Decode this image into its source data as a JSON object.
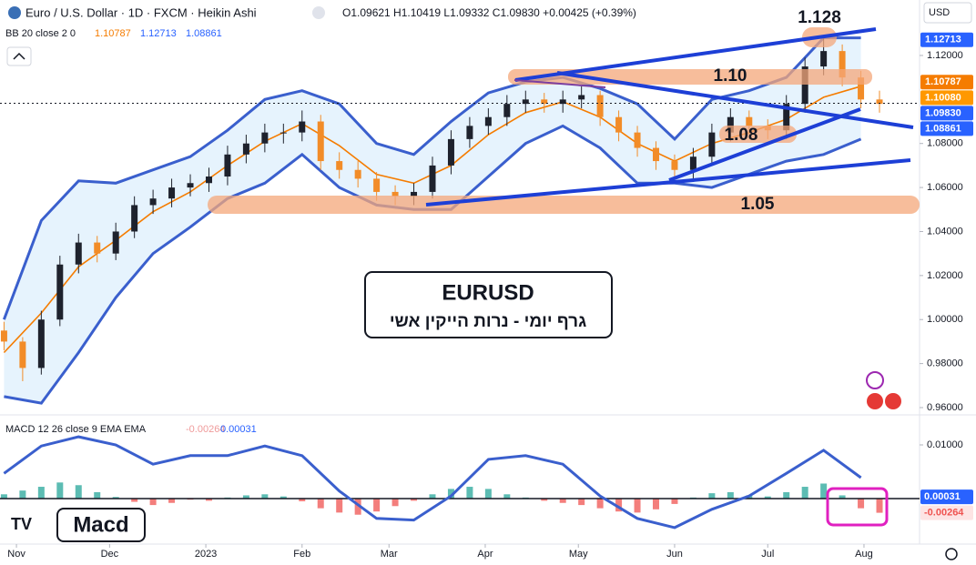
{
  "chart_data": [
    {
      "type": "candlestick",
      "title": "Euro / U.S. Dollar · 1D · FXCM · Heikin Ashi",
      "ohlc_text": "O1.09621 H1.10419 L1.09332 C1.09830 +0.00425 (+0.39%)",
      "indicator": "BB 20 close 2 0",
      "currency": "USD",
      "x": [
        -4,
        2,
        8,
        14,
        20,
        26,
        32,
        38,
        44,
        50,
        56,
        62,
        68,
        74,
        80,
        86,
        92,
        98,
        104,
        110,
        116,
        122,
        128,
        134,
        140,
        146,
        152,
        158,
        164,
        170,
        176,
        182,
        188,
        194,
        200,
        206,
        212,
        218,
        224,
        230,
        236,
        242,
        248,
        254,
        260,
        266,
        272,
        278
      ],
      "ohlc": [
        [
          0.995,
          0.999,
          0.986,
          0.99
        ],
        [
          0.99,
          0.992,
          0.972,
          0.978
        ],
        [
          0.978,
          1.004,
          0.975,
          1.0
        ],
        [
          1.0,
          1.029,
          0.997,
          1.025
        ],
        [
          1.025,
          1.039,
          1.021,
          1.035
        ],
        [
          1.035,
          1.038,
          1.026,
          1.03
        ],
        [
          1.03,
          1.044,
          1.027,
          1.04
        ],
        [
          1.04,
          1.056,
          1.037,
          1.052
        ],
        [
          1.052,
          1.059,
          1.048,
          1.055
        ],
        [
          1.055,
          1.064,
          1.051,
          1.06
        ],
        [
          1.06,
          1.066,
          1.056,
          1.062
        ],
        [
          1.062,
          1.069,
          1.058,
          1.065
        ],
        [
          1.065,
          1.079,
          1.061,
          1.075
        ],
        [
          1.075,
          1.084,
          1.071,
          1.08
        ],
        [
          1.08,
          1.089,
          1.076,
          1.085
        ],
        [
          1.085,
          1.089,
          1.08,
          1.085
        ],
        [
          1.085,
          1.095,
          1.081,
          1.09
        ],
        [
          1.09,
          1.093,
          1.068,
          1.072
        ],
        [
          1.072,
          1.076,
          1.064,
          1.068
        ],
        [
          1.068,
          1.072,
          1.06,
          1.064
        ],
        [
          1.064,
          1.067,
          1.054,
          1.058
        ],
        [
          1.058,
          1.061,
          1.052,
          1.056
        ],
        [
          1.056,
          1.062,
          1.052,
          1.058
        ],
        [
          1.058,
          1.074,
          1.055,
          1.07
        ],
        [
          1.07,
          1.086,
          1.066,
          1.082
        ],
        [
          1.082,
          1.092,
          1.078,
          1.088
        ],
        [
          1.088,
          1.096,
          1.084,
          1.092
        ],
        [
          1.092,
          1.102,
          1.088,
          1.098
        ],
        [
          1.098,
          1.104,
          1.094,
          1.1
        ],
        [
          1.1,
          1.103,
          1.094,
          1.098
        ],
        [
          1.098,
          1.104,
          1.094,
          1.1
        ],
        [
          1.1,
          1.106,
          1.096,
          1.102
        ],
        [
          1.102,
          1.104,
          1.088,
          1.092
        ],
        [
          1.092,
          1.095,
          1.081,
          1.085
        ],
        [
          1.085,
          1.088,
          1.074,
          1.078
        ],
        [
          1.078,
          1.081,
          1.068,
          1.072
        ],
        [
          1.072,
          1.075,
          1.064,
          1.068
        ],
        [
          1.068,
          1.078,
          1.064,
          1.074
        ],
        [
          1.074,
          1.089,
          1.07,
          1.085
        ],
        [
          1.085,
          1.096,
          1.081,
          1.092
        ],
        [
          1.092,
          1.095,
          1.084,
          1.088
        ],
        [
          1.088,
          1.091,
          1.082,
          1.086
        ],
        [
          1.086,
          1.102,
          1.082,
          1.098
        ],
        [
          1.098,
          1.119,
          1.094,
          1.115
        ],
        [
          1.115,
          1.128,
          1.111,
          1.122
        ],
        [
          1.122,
          1.125,
          1.106,
          1.11
        ],
        [
          1.11,
          1.113,
          1.096,
          1.1
        ],
        [
          1.1,
          1.104,
          1.094,
          1.098
        ]
      ],
      "up_color": "#1e222d",
      "down_color": "#f28c28",
      "band_x": [
        -4,
        8,
        20,
        32,
        44,
        56,
        68,
        80,
        92,
        104,
        116,
        128,
        140,
        152,
        164,
        176,
        188,
        200,
        212,
        224,
        236,
        248,
        260,
        272
      ],
      "upper": {
        "color": "#3a5fcd",
        "values": [
          1.0,
          1.045,
          1.063,
          1.062,
          1.068,
          1.074,
          1.086,
          1.1,
          1.104,
          1.098,
          1.08,
          1.075,
          1.09,
          1.103,
          1.108,
          1.11,
          1.105,
          1.098,
          1.082,
          1.1,
          1.104,
          1.11,
          1.128,
          1.128
        ]
      },
      "basis": {
        "color": "#f57c00",
        "values": [
          0.985,
          1.003,
          1.024,
          1.036,
          1.049,
          1.058,
          1.07,
          1.081,
          1.089,
          1.079,
          1.066,
          1.062,
          1.07,
          1.084,
          1.094,
          1.099,
          1.092,
          1.08,
          1.072,
          1.08,
          1.085,
          1.091,
          1.101,
          1.106
        ]
      },
      "lower": {
        "color": "#3a5fcd",
        "values": [
          0.965,
          0.962,
          0.985,
          1.01,
          1.03,
          1.042,
          1.055,
          1.062,
          1.075,
          1.06,
          1.052,
          1.05,
          1.05,
          1.065,
          1.08,
          1.088,
          1.078,
          1.062,
          1.062,
          1.06,
          1.066,
          1.072,
          1.075,
          1.082
        ]
      },
      "band_fill": "#e3f2fd",
      "xlim": [
        -5.3,
        290.9
      ],
      "xticks": [
        {
          "value": 0,
          "label": "Nov"
        },
        {
          "value": 30,
          "label": "Dec"
        },
        {
          "value": 61,
          "label": "2023"
        },
        {
          "value": 92,
          "label": "Feb"
        },
        {
          "value": 120,
          "label": "Mar"
        },
        {
          "value": 151,
          "label": "Apr"
        },
        {
          "value": 181,
          "label": "May"
        },
        {
          "value": 212,
          "label": "Jun"
        },
        {
          "value": 242,
          "label": "Jul"
        },
        {
          "value": 273,
          "label": "Aug"
        }
      ],
      "ylim": [
        0.9571,
        1.1452
      ],
      "yticks": [
        {
          "value": 0.96,
          "label": "0.96000"
        },
        {
          "value": 0.98,
          "label": "0.98000"
        },
        {
          "value": 1.0,
          "label": "1.00000"
        },
        {
          "value": 1.02,
          "label": "1.02000"
        },
        {
          "value": 1.04,
          "label": "1.04000"
        },
        {
          "value": 1.06,
          "label": "1.06000"
        },
        {
          "value": 1.08,
          "label": "1.08000"
        },
        {
          "value": 1.12,
          "label": "1.12000"
        }
      ],
      "price_labels": [
        {
          "value": 1.12713,
          "label": "1.12713",
          "color": "#2962ff"
        },
        {
          "value": 1.10787,
          "label": "1.10787",
          "color": "#f57c00"
        },
        {
          "value": 1.1008,
          "label": "1.10080",
          "color": "#ff9800"
        },
        {
          "value": 1.0983,
          "label": "1.09830",
          "color": "#2962ff"
        },
        {
          "value": 1.08861,
          "label": "1.08861",
          "color": "#2962ff"
        }
      ],
      "annotations": [
        "1.128",
        "1.10",
        "1.08",
        "1.05"
      ],
      "box_title": "EURUSD",
      "box_subtitle": "גרף יומי - נרות הייקין אשי"
    },
    {
      "type": "macd",
      "indicator": "MACD 12 26 close 9 EMA EMA",
      "line_x": [
        -4,
        8,
        20,
        32,
        44,
        56,
        68,
        80,
        92,
        104,
        116,
        128,
        140,
        152,
        164,
        176,
        188,
        200,
        212,
        224,
        236,
        248,
        260,
        272
      ],
      "macd": [
        0.0047,
        0.0098,
        0.0115,
        0.01,
        0.0064,
        0.008,
        0.008,
        0.0098,
        0.008,
        0.0014,
        -0.0037,
        -0.004,
        0.0005,
        0.0073,
        0.008,
        0.0064,
        0.0005,
        -0.0037,
        -0.0054,
        -0.002,
        0.0005,
        0.0047,
        0.009,
        0.0039
      ],
      "macd_color": "#3a5fcd",
      "hist_x": [
        -4,
        2,
        8,
        14,
        20,
        26,
        32,
        38,
        44,
        50,
        56,
        62,
        68,
        74,
        80,
        86,
        92,
        98,
        104,
        110,
        116,
        122,
        128,
        134,
        140,
        146,
        152,
        158,
        164,
        170,
        176,
        182,
        188,
        194,
        200,
        206,
        212,
        218,
        224,
        230,
        236,
        242,
        248,
        254,
        260,
        266,
        272,
        278
      ],
      "histogram": [
        0.0008,
        0.0015,
        0.0022,
        0.003,
        0.0025,
        0.0012,
        0.0003,
        -0.0006,
        -0.0012,
        -0.0008,
        -0.0002,
        -0.0004,
        0.0002,
        0.0006,
        0.0008,
        0.0004,
        -0.0005,
        -0.0018,
        -0.0026,
        -0.003,
        -0.0024,
        -0.0014,
        -0.0004,
        0.0008,
        0.0018,
        0.0022,
        0.0018,
        0.0008,
        0.0002,
        -0.0004,
        -0.0008,
        -0.0012,
        -0.0018,
        -0.0024,
        -0.0026,
        -0.002,
        -0.001,
        0.0002,
        0.001,
        0.0012,
        0.0006,
        0.0004,
        0.0012,
        0.0022,
        0.0028,
        0.0006,
        -0.0018,
        -0.00264
      ],
      "pos_color": "#26a69a",
      "neg_color": "#ef5350",
      "ylim": [
        -0.00847,
        0.01576
      ],
      "yticks": [
        {
          "value": 0.01,
          "label": "0.01000"
        }
      ],
      "value_labels": [
        {
          "value": -0.00264,
          "label": "-0.00264",
          "color": "#ef5350"
        },
        {
          "value": 0.00031,
          "label": "0.00031",
          "color": "#2962ff"
        }
      ],
      "tag": "Macd"
    }
  ]
}
